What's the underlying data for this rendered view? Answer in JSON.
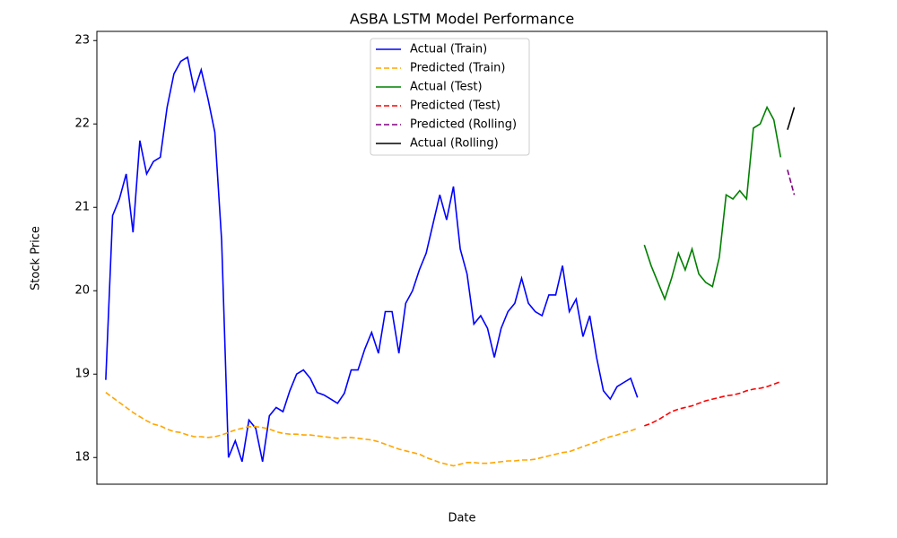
{
  "chart_data": {
    "type": "line",
    "title": "ASBA LSTM Model Performance",
    "x_label": "Date",
    "y_label": "Stock Price",
    "xlim": [
      -1.3,
      105.8
    ],
    "ylim": [
      17.68,
      23.11
    ],
    "yticks": [
      18,
      19,
      20,
      21,
      22,
      23
    ],
    "legend": "upper center",
    "series": [
      {
        "name": "Actual (Train)",
        "color": "#0000ff",
        "dash": "solid",
        "values": [
          18.93,
          20.9,
          21.1,
          21.4,
          20.7,
          21.8,
          21.4,
          21.55,
          21.6,
          22.2,
          22.6,
          22.75,
          22.8,
          22.4,
          22.65,
          22.3,
          21.9,
          20.6,
          18.0,
          18.2,
          17.95,
          18.45,
          18.35,
          17.95,
          18.5,
          18.6,
          18.55,
          18.8,
          19.0,
          19.05,
          18.95,
          18.78,
          18.75,
          18.7,
          18.65,
          18.77,
          19.05,
          19.05,
          19.3,
          19.5,
          19.25,
          19.75,
          19.75,
          19.25,
          19.85,
          20.0,
          20.25,
          20.45,
          20.8,
          21.15,
          20.85,
          21.25,
          20.5,
          20.2,
          19.6,
          19.7,
          19.55,
          19.2,
          19.55,
          19.75,
          19.85,
          20.15,
          19.85,
          19.75,
          19.7,
          19.95,
          19.95,
          20.3,
          19.75,
          19.9,
          19.45,
          19.7,
          19.2,
          18.8,
          18.7,
          18.85,
          18.9,
          18.95,
          18.72,
          null,
          null,
          null,
          null,
          null,
          null,
          null,
          null,
          null,
          null,
          null,
          null,
          null,
          null,
          null,
          null,
          null,
          null,
          null,
          null,
          null,
          null,
          null
        ]
      },
      {
        "name": "Predicted (Train)",
        "color": "#ffa500",
        "dash": "dashed",
        "values": [
          18.78,
          18.72,
          18.66,
          18.6,
          18.54,
          18.49,
          18.44,
          18.4,
          18.38,
          18.34,
          18.31,
          18.3,
          18.27,
          18.25,
          18.25,
          18.24,
          18.25,
          18.27,
          18.3,
          18.33,
          18.35,
          18.37,
          18.37,
          18.36,
          18.34,
          18.31,
          18.29,
          18.28,
          18.28,
          18.27,
          18.27,
          18.26,
          18.25,
          18.24,
          18.23,
          18.24,
          18.24,
          18.23,
          18.22,
          18.21,
          18.19,
          18.16,
          18.13,
          18.1,
          18.08,
          18.06,
          18.04,
          18.0,
          17.97,
          17.94,
          17.92,
          17.9,
          17.92,
          17.94,
          17.94,
          17.93,
          17.93,
          17.94,
          17.95,
          17.96,
          17.96,
          17.97,
          17.97,
          17.98,
          18.0,
          18.02,
          18.04,
          18.06,
          18.07,
          18.1,
          18.13,
          18.16,
          18.19,
          18.22,
          18.25,
          18.27,
          18.3,
          18.32,
          18.35,
          null,
          null,
          null,
          null,
          null,
          null,
          null,
          null,
          null,
          null,
          null,
          null,
          null,
          null,
          null,
          null,
          null,
          null,
          null,
          null,
          null,
          null,
          null
        ]
      },
      {
        "name": "Actual (Test)",
        "color": "#008000",
        "dash": "solid",
        "values": [
          null,
          null,
          null,
          null,
          null,
          null,
          null,
          null,
          null,
          null,
          null,
          null,
          null,
          null,
          null,
          null,
          null,
          null,
          null,
          null,
          null,
          null,
          null,
          null,
          null,
          null,
          null,
          null,
          null,
          null,
          null,
          null,
          null,
          null,
          null,
          null,
          null,
          null,
          null,
          null,
          null,
          null,
          null,
          null,
          null,
          null,
          null,
          null,
          null,
          null,
          null,
          null,
          null,
          null,
          null,
          null,
          null,
          null,
          null,
          null,
          null,
          null,
          null,
          null,
          null,
          null,
          null,
          null,
          null,
          null,
          null,
          null,
          null,
          null,
          null,
          null,
          null,
          null,
          null,
          20.55,
          20.3,
          20.1,
          19.9,
          20.15,
          20.45,
          20.25,
          20.5,
          20.2,
          20.1,
          20.05,
          20.4,
          21.15,
          21.1,
          21.2,
          21.1,
          21.95,
          22.0,
          22.2,
          22.05,
          21.6,
          null,
          null
        ]
      },
      {
        "name": "Predicted (Test)",
        "color": "#ff0000",
        "dash": "dashed",
        "values": [
          null,
          null,
          null,
          null,
          null,
          null,
          null,
          null,
          null,
          null,
          null,
          null,
          null,
          null,
          null,
          null,
          null,
          null,
          null,
          null,
          null,
          null,
          null,
          null,
          null,
          null,
          null,
          null,
          null,
          null,
          null,
          null,
          null,
          null,
          null,
          null,
          null,
          null,
          null,
          null,
          null,
          null,
          null,
          null,
          null,
          null,
          null,
          null,
          null,
          null,
          null,
          null,
          null,
          null,
          null,
          null,
          null,
          null,
          null,
          null,
          null,
          null,
          null,
          null,
          null,
          null,
          null,
          null,
          null,
          null,
          null,
          null,
          null,
          null,
          null,
          null,
          null,
          null,
          null,
          18.38,
          18.41,
          18.45,
          18.5,
          18.55,
          18.58,
          18.6,
          18.62,
          18.65,
          18.68,
          18.7,
          18.72,
          18.74,
          18.75,
          18.77,
          18.8,
          18.82,
          18.83,
          18.85,
          18.88,
          18.91,
          null,
          null
        ]
      },
      {
        "name": "Predicted (Rolling)",
        "color": "#800080",
        "dash": "dashed",
        "values": [
          null,
          null,
          null,
          null,
          null,
          null,
          null,
          null,
          null,
          null,
          null,
          null,
          null,
          null,
          null,
          null,
          null,
          null,
          null,
          null,
          null,
          null,
          null,
          null,
          null,
          null,
          null,
          null,
          null,
          null,
          null,
          null,
          null,
          null,
          null,
          null,
          null,
          null,
          null,
          null,
          null,
          null,
          null,
          null,
          null,
          null,
          null,
          null,
          null,
          null,
          null,
          null,
          null,
          null,
          null,
          null,
          null,
          null,
          null,
          null,
          null,
          null,
          null,
          null,
          null,
          null,
          null,
          null,
          null,
          null,
          null,
          null,
          null,
          null,
          null,
          null,
          null,
          null,
          null,
          null,
          null,
          null,
          null,
          null,
          null,
          null,
          null,
          null,
          null,
          null,
          null,
          null,
          null,
          null,
          null,
          null,
          null,
          null,
          null,
          null,
          21.45,
          21.15
        ]
      },
      {
        "name": "Actual (Rolling)",
        "color": "#000000",
        "dash": "solid",
        "values": [
          null,
          null,
          null,
          null,
          null,
          null,
          null,
          null,
          null,
          null,
          null,
          null,
          null,
          null,
          null,
          null,
          null,
          null,
          null,
          null,
          null,
          null,
          null,
          null,
          null,
          null,
          null,
          null,
          null,
          null,
          null,
          null,
          null,
          null,
          null,
          null,
          null,
          null,
          null,
          null,
          null,
          null,
          null,
          null,
          null,
          null,
          null,
          null,
          null,
          null,
          null,
          null,
          null,
          null,
          null,
          null,
          null,
          null,
          null,
          null,
          null,
          null,
          null,
          null,
          null,
          null,
          null,
          null,
          null,
          null,
          null,
          null,
          null,
          null,
          null,
          null,
          null,
          null,
          null,
          null,
          null,
          null,
          null,
          null,
          null,
          null,
          null,
          null,
          null,
          null,
          null,
          null,
          null,
          null,
          null,
          null,
          null,
          null,
          null,
          null,
          21.93,
          22.2
        ]
      }
    ]
  }
}
